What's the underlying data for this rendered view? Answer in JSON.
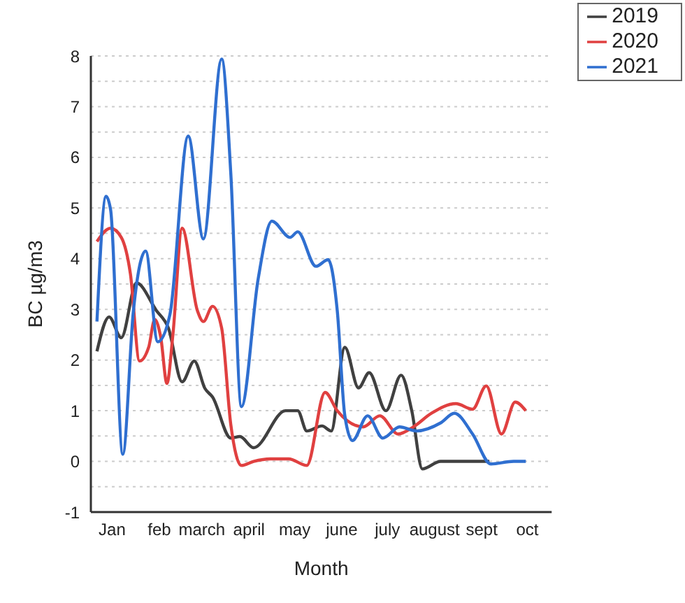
{
  "chart_data": {
    "type": "line",
    "xlabel": "Month",
    "ylabel": "BC µg/m3",
    "xlim": [
      "--01-01",
      "--10-31"
    ],
    "xticks": [
      {
        "value": "--01-15",
        "label": "Jan"
      },
      {
        "value": "--02-15",
        "label": "feb"
      },
      {
        "value": "--03-15",
        "label": "march"
      },
      {
        "value": "--04-15",
        "label": "april"
      },
      {
        "value": "--05-15",
        "label": "may"
      },
      {
        "value": "--06-15",
        "label": "june"
      },
      {
        "value": "--07-15",
        "label": "july"
      },
      {
        "value": "--08-15",
        "label": "august"
      },
      {
        "value": "--09-15",
        "label": "sept"
      },
      {
        "value": "--10-15",
        "label": "oct"
      }
    ],
    "ylim": [
      -1,
      8
    ],
    "yticks": [
      -1,
      {
        "value": -0.5,
        "label": null
      },
      0,
      {
        "value": 0.5,
        "label": null
      },
      1,
      {
        "value": 1.5,
        "label": null
      },
      2,
      {
        "value": 2.5,
        "label": null
      },
      3,
      {
        "value": 3.5,
        "label": null
      },
      4,
      {
        "value": 4.5,
        "label": null
      },
      5,
      {
        "value": 5.5,
        "label": null
      },
      6,
      {
        "value": 6.5,
        "label": null
      },
      7,
      {
        "value": 7.5,
        "label": null
      },
      8
    ],
    "grid": "y",
    "legend": "top right",
    "line_style": "solid",
    "marker": "none",
    "series": [
      {
        "name": "2019",
        "color": "#404040",
        "x": [
          "--01-05",
          "--01-13",
          "--01-21",
          "--01-31",
          "--02-13",
          "--02-21",
          "--03-02",
          "--03-10",
          "--03-17",
          "--03-22",
          "--04-03",
          "--04-09",
          "--04-18",
          "--05-09",
          "--05-17",
          "--05-23",
          "--06-02",
          "--06-08",
          "--06-17",
          "--06-26",
          "--07-03",
          "--07-14",
          "--07-24",
          "--07-31",
          "--08-07",
          "--08-19",
          "--09-20"
        ],
        "values": [
          2.17,
          2.85,
          2.44,
          3.52,
          2.98,
          2.63,
          1.57,
          1.98,
          1.44,
          1.27,
          0.46,
          0.49,
          0.27,
          1.0,
          1.0,
          0.6,
          0.7,
          0.6,
          2.25,
          1.45,
          1.75,
          1.0,
          1.7,
          1.0,
          -0.15,
          0,
          0
        ]
      },
      {
        "name": "2020",
        "color": "#e04040",
        "x": [
          "--01-05",
          "--01-14",
          "--01-21",
          "--01-27",
          "--02-02",
          "--02-08",
          "--02-12",
          "--02-16",
          "--02-20",
          "--02-24",
          "--03-02",
          "--03-12",
          "--03-16",
          "--03-22",
          "--03-28",
          "--04-03",
          "--04-10",
          "--04-18",
          "--04-29",
          "--05-11",
          "--05-23",
          "--06-04",
          "--06-12",
          "--06-29",
          "--07-10",
          "--07-22",
          "--08-01",
          "--08-13",
          "--08-29",
          "--09-09",
          "--09-18",
          "--09-28",
          "--10-07",
          "--10-14"
        ],
        "values": [
          4.34,
          4.6,
          4.42,
          3.7,
          1.98,
          2.25,
          2.8,
          2.44,
          1.54,
          2.52,
          4.6,
          2.98,
          2.76,
          3.06,
          2.63,
          0.73,
          -0.08,
          0,
          0.05,
          0.05,
          -0.08,
          1.36,
          1.0,
          0.68,
          0.9,
          0.54,
          0.68,
          0.95,
          1.14,
          1.03,
          1.49,
          0.54,
          1.17,
          1.0
        ]
      },
      {
        "name": "2021",
        "color": "#2f6fd0",
        "x": [
          "--01-05",
          "--01-11",
          "--01-14",
          "--01-22",
          "--01-29",
          "--02-06",
          "--02-14",
          "--02-22",
          "--03-06",
          "--03-16",
          "--03-28",
          "--04-03",
          "--04-10",
          "--04-21",
          "--04-30",
          "--05-12",
          "--05-17",
          "--05-29",
          "--06-06",
          "--06-12",
          "--06-17",
          "--06-22",
          "--07-02",
          "--07-12",
          "--07-23",
          "--08-03",
          "--08-19",
          "--08-28",
          "--09-09",
          "--09-21",
          "--10-06",
          "--10-14"
        ],
        "values": [
          2.76,
          5.23,
          4.96,
          0.14,
          2.98,
          4.15,
          2.36,
          2.9,
          6.42,
          4.39,
          7.94,
          5.69,
          1.08,
          3.6,
          4.74,
          4.42,
          4.53,
          3.85,
          3.98,
          2.98,
          0.9,
          0.41,
          0.9,
          0.46,
          0.68,
          0.6,
          0.76,
          0.95,
          0.54,
          -0.05,
          0,
          0
        ]
      }
    ]
  }
}
